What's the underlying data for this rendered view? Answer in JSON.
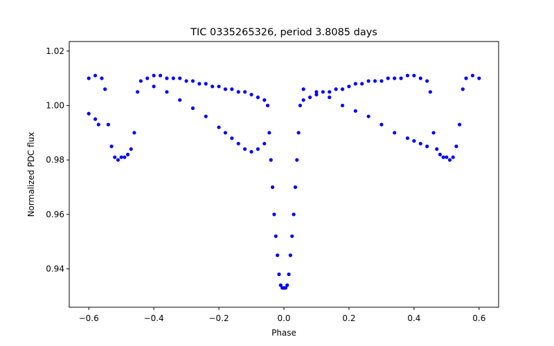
{
  "chart_data": {
    "type": "scatter",
    "title": "TIC 0335265326, period 3.8085 days",
    "xlabel": "Phase",
    "ylabel": "Normalized PDC flux",
    "xlim": [
      -0.66,
      0.66
    ],
    "ylim": [
      0.9259,
      1.0235
    ],
    "xticks": [
      -0.6,
      -0.4,
      -0.2,
      0.0,
      0.2,
      0.4,
      0.6
    ],
    "xtick_labels": [
      "−0.6",
      "−0.4",
      "−0.2",
      "0.0",
      "0.2",
      "0.4",
      "0.6"
    ],
    "yticks": [
      0.94,
      0.96,
      0.98,
      1.0,
      1.02
    ],
    "ytick_labels": [
      "0.94",
      "0.96",
      "0.98",
      "1.00",
      "1.02"
    ],
    "grid": false,
    "legend": "none",
    "marker_color": "#0000ff",
    "series": [
      {
        "x": [
          -0.6,
          -0.58,
          -0.56,
          -0.55,
          -0.54,
          -0.53,
          -0.52,
          -0.51,
          -0.5,
          -0.49,
          -0.48,
          -0.47,
          -0.46,
          -0.45,
          -0.44,
          -0.42,
          -0.4,
          -0.38,
          -0.36,
          -0.34,
          -0.32,
          -0.3,
          -0.28,
          -0.26,
          -0.24,
          -0.22,
          -0.2,
          -0.18,
          -0.16,
          -0.14,
          -0.12,
          -0.1,
          -0.08,
          -0.06,
          -0.05,
          -0.045,
          -0.04,
          -0.035,
          -0.03,
          -0.025,
          -0.02,
          -0.015,
          -0.01,
          -0.005,
          0.0,
          0.005,
          0.01,
          0.015,
          0.02,
          0.025,
          0.03,
          0.035,
          0.04,
          0.045,
          0.05,
          0.06,
          0.08,
          0.1,
          0.12,
          0.14,
          0.16,
          0.18,
          0.2,
          0.22,
          0.24,
          0.26,
          0.28,
          0.3,
          0.32,
          0.34,
          0.36,
          0.38,
          0.4,
          0.42,
          0.44,
          0.45,
          0.46,
          0.47,
          0.48,
          0.49,
          0.5,
          0.51,
          0.52,
          0.53,
          0.54,
          0.55,
          0.56,
          0.58,
          0.6
        ],
        "y": [
          1.01,
          1.011,
          1.01,
          1.006,
          0.993,
          0.985,
          0.981,
          0.98,
          0.981,
          0.981,
          0.982,
          0.984,
          0.99,
          1.005,
          1.009,
          1.01,
          1.011,
          1.011,
          1.01,
          1.01,
          1.01,
          1.009,
          1.009,
          1.008,
          1.008,
          1.007,
          1.007,
          1.006,
          1.006,
          1.005,
          1.005,
          1.004,
          1.003,
          1.002,
          1.0,
          0.99,
          0.98,
          0.97,
          0.96,
          0.952,
          0.945,
          0.938,
          0.934,
          0.933,
          0.933,
          0.933,
          0.934,
          0.938,
          0.945,
          0.952,
          0.96,
          0.97,
          0.98,
          0.99,
          1.0,
          1.002,
          1.003,
          1.004,
          1.005,
          1.005,
          1.006,
          1.006,
          1.007,
          1.008,
          1.008,
          1.009,
          1.009,
          1.009,
          1.01,
          1.01,
          1.01,
          1.011,
          1.011,
          1.01,
          1.009,
          1.005,
          0.99,
          0.984,
          0.982,
          0.981,
          0.981,
          0.98,
          0.981,
          0.985,
          0.993,
          1.006,
          1.01,
          1.011,
          1.01
        ]
      },
      {
        "x": [
          -0.6,
          -0.58,
          -0.57,
          -0.4,
          -0.36,
          -0.32,
          -0.28,
          -0.24,
          -0.2,
          -0.18,
          -0.16,
          -0.14,
          -0.12,
          -0.1,
          -0.08,
          -0.06,
          0.06,
          0.1,
          0.14,
          0.18,
          0.22,
          0.26,
          0.3,
          0.34,
          0.38,
          0.4,
          0.42,
          0.44
        ],
        "y": [
          0.997,
          0.995,
          0.993,
          1.007,
          1.005,
          1.002,
          0.999,
          0.996,
          0.992,
          0.99,
          0.988,
          0.986,
          0.984,
          0.983,
          0.984,
          0.986,
          1.006,
          1.005,
          1.003,
          1.0,
          0.998,
          0.996,
          0.993,
          0.99,
          0.988,
          0.987,
          0.986,
          0.985
        ]
      }
    ]
  }
}
